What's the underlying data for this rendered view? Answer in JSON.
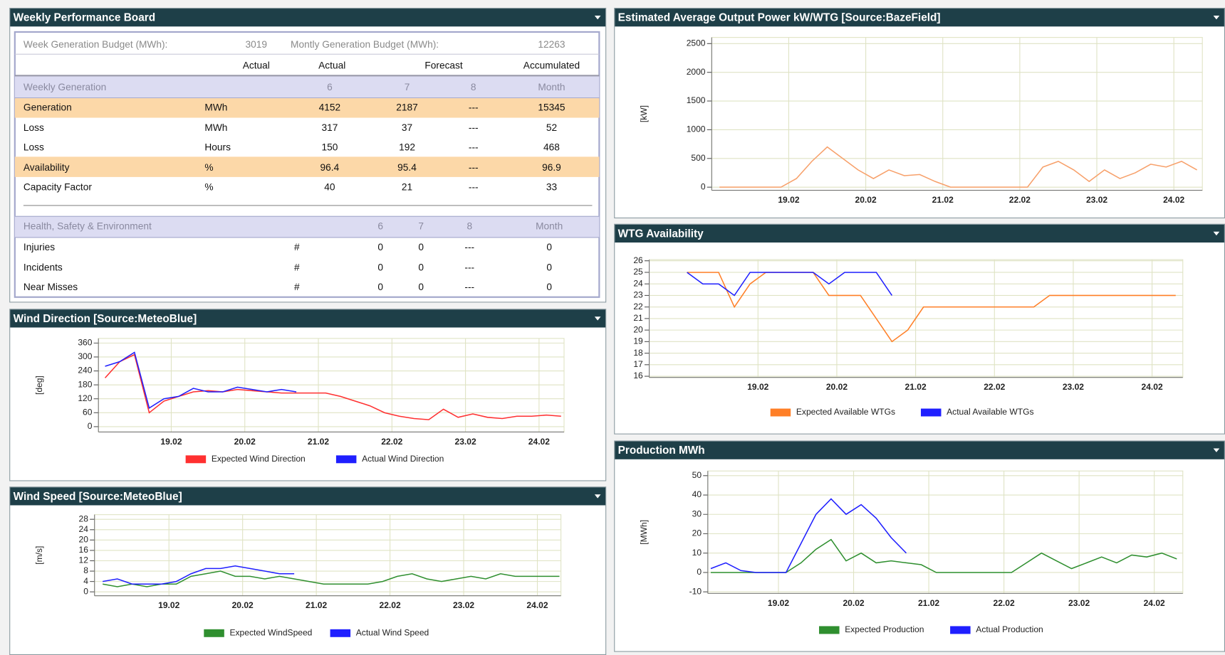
{
  "board": {
    "title": "Weekly Performance Board",
    "budget": {
      "week_label": "Week Generation Budget (MWh):",
      "week_value": 3019,
      "month_label": "Montly Generation Budget (MWh):",
      "month_value": 12263
    },
    "header": [
      "Actual",
      "Actual",
      "Forecast",
      "Accumulated"
    ],
    "generation": {
      "title": "Weekly Generation",
      "columns": [
        "6",
        "7",
        "8",
        "Month"
      ],
      "rows": [
        [
          "Generation",
          "MWh",
          4152,
          2187,
          "---",
          15345
        ],
        [
          "Loss",
          "MWh",
          317,
          37,
          "---",
          52
        ],
        [
          "Loss",
          "Hours",
          150,
          192,
          "---",
          468
        ],
        [
          "Availability",
          "%",
          96.4,
          95.4,
          "---",
          96.9
        ],
        [
          "Capacity Factor",
          "%",
          40,
          21,
          "---",
          33
        ]
      ]
    },
    "hse": {
      "title": "Health, Safety & Environment",
      "columns": [
        "6",
        "7",
        "8",
        "Month"
      ],
      "rows": [
        [
          "Injuries",
          "#",
          0,
          0,
          "---",
          0
        ],
        [
          "Incidents",
          "#",
          0,
          0,
          "---",
          0
        ],
        [
          "Near Misses",
          "#",
          0,
          0,
          "---",
          0
        ]
      ]
    }
  },
  "chart_data": [
    {
      "type": "line",
      "title": "Estimated Average Output Power kW/WTG [Source:BazeField]",
      "ylabel": "[kW]",
      "x": [
        18.1,
        18.3,
        18.5,
        18.7,
        18.9,
        19.1,
        19.3,
        19.5,
        19.7,
        19.9,
        20.1,
        20.3,
        20.5,
        20.7,
        20.9,
        21.1,
        21.3,
        21.5,
        21.7,
        21.9,
        22.1,
        22.3,
        22.5,
        22.7,
        22.9,
        23.1,
        23.3,
        23.5,
        23.7,
        23.9,
        24.1,
        24.3
      ],
      "xlim": [
        18.0,
        24.37
      ],
      "xticks": [
        {
          "value": 19,
          "label": "19.02"
        },
        {
          "value": 20,
          "label": "20.02"
        },
        {
          "value": 21,
          "label": "21.02"
        },
        {
          "value": 22,
          "label": "22.02"
        },
        {
          "value": 23,
          "label": "23.02"
        },
        {
          "value": 24,
          "label": "24.02"
        }
      ],
      "ylim": [
        -54,
        2607
      ],
      "yticks": [
        0,
        500,
        1000,
        1500,
        2000,
        2500
      ],
      "grid": true,
      "series": [
        {
          "color": "#f7a06a",
          "values": [
            0,
            0,
            0,
            0,
            0,
            150,
            450,
            700,
            500,
            300,
            150,
            300,
            200,
            220,
            100,
            0,
            0,
            0,
            0,
            0,
            0,
            350,
            450,
            300,
            100,
            300,
            150,
            250,
            400,
            350,
            450,
            300
          ]
        }
      ]
    },
    {
      "type": "line",
      "title": "WTG Availability",
      "x": [
        18.1,
        18.3,
        18.5,
        18.7,
        18.9,
        19.1,
        19.3,
        19.5,
        19.7,
        19.9,
        20.1,
        20.3,
        20.5,
        20.7,
        20.9,
        21.1,
        21.3,
        21.5,
        21.7,
        21.9,
        22.1,
        22.3,
        22.5,
        22.7,
        22.9,
        23.1,
        23.3,
        23.5,
        23.7,
        23.9,
        24.1,
        24.3
      ],
      "xlim": [
        17.62,
        24.39
      ],
      "xticks": [
        {
          "value": 19,
          "label": "19.02"
        },
        {
          "value": 20,
          "label": "20.02"
        },
        {
          "value": 21,
          "label": "21.02"
        },
        {
          "value": 22,
          "label": "22.02"
        },
        {
          "value": 23,
          "label": "23.02"
        },
        {
          "value": 24,
          "label": "24.02"
        }
      ],
      "ylim": [
        15.9,
        26.1
      ],
      "yticks": [
        16,
        17,
        18,
        19,
        20,
        21,
        22,
        23,
        24,
        25,
        26
      ],
      "grid": true,
      "series": [
        {
          "name": "Expected Available WTGs",
          "color": "#ff7f27",
          "values": [
            25,
            25,
            25,
            22,
            24,
            25,
            25,
            25,
            25,
            23,
            23,
            23,
            21,
            19,
            20,
            22,
            22,
            22,
            22,
            22,
            22,
            22,
            22,
            23,
            23,
            23,
            23,
            23,
            23,
            23,
            23,
            23
          ]
        },
        {
          "name": "Actual Available WTGs",
          "color": "#1f1fff",
          "values": [
            25,
            24,
            24,
            23,
            25,
            25,
            25,
            25,
            25,
            24,
            25,
            25,
            25,
            23,
            null,
            null,
            null,
            null,
            null,
            null,
            null,
            null,
            null,
            null,
            null,
            null,
            null,
            null,
            null,
            null,
            null,
            null
          ]
        }
      ]
    },
    {
      "type": "line",
      "title": "Production MWh",
      "ylabel": "[MWh]",
      "x": [
        18.1,
        18.3,
        18.5,
        18.7,
        18.9,
        19.1,
        19.3,
        19.5,
        19.7,
        19.9,
        20.1,
        20.3,
        20.5,
        20.7,
        20.9,
        21.1,
        21.3,
        21.5,
        21.7,
        21.9,
        22.1,
        22.3,
        22.5,
        22.7,
        22.9,
        23.1,
        23.3,
        23.5,
        23.7,
        23.9,
        24.1,
        24.3
      ],
      "xlim": [
        18.06,
        24.38
      ],
      "xticks": [
        {
          "value": 19,
          "label": "19.02"
        },
        {
          "value": 20,
          "label": "20.02"
        },
        {
          "value": 21,
          "label": "21.02"
        },
        {
          "value": 22,
          "label": "22.02"
        },
        {
          "value": 23,
          "label": "23.02"
        },
        {
          "value": 24,
          "label": "24.02"
        }
      ],
      "ylim": [
        -10.8,
        52.4
      ],
      "yticks": [
        -10,
        0,
        10,
        20,
        30,
        40,
        50
      ],
      "grid": true,
      "series": [
        {
          "name": "Expected Production",
          "color": "#2f8f2f",
          "values": [
            0,
            0,
            0,
            0,
            0,
            0,
            5,
            12,
            17,
            6,
            10,
            5,
            6,
            5,
            4,
            0,
            0,
            0,
            0,
            0,
            0,
            5,
            10,
            6,
            2,
            5,
            8,
            5,
            9,
            8,
            10,
            7
          ]
        },
        {
          "name": "Actual Production",
          "color": "#1f1fff",
          "values": [
            2,
            5,
            1,
            0,
            0,
            0,
            15,
            30,
            38,
            30,
            35,
            28,
            18,
            10,
            null,
            null,
            null,
            null,
            null,
            null,
            null,
            null,
            null,
            null,
            null,
            null,
            null,
            null,
            null,
            null,
            null,
            null
          ]
        }
      ]
    },
    {
      "type": "line",
      "title": "Wind Direction [Source:MeteoBlue]",
      "ylabel": "[deg]",
      "x": [
        18.1,
        18.3,
        18.5,
        18.7,
        18.9,
        19.1,
        19.3,
        19.5,
        19.7,
        19.9,
        20.1,
        20.3,
        20.5,
        20.7,
        20.9,
        21.1,
        21.3,
        21.5,
        21.7,
        21.9,
        22.1,
        22.3,
        22.5,
        22.7,
        22.9,
        23.1,
        23.3,
        23.5,
        23.7,
        23.9,
        24.1,
        24.3
      ],
      "xlim": [
        18.01,
        24.34
      ],
      "xticks": [
        {
          "value": 19,
          "label": "19.02"
        },
        {
          "value": 20,
          "label": "20.02"
        },
        {
          "value": 21,
          "label": "21.02"
        },
        {
          "value": 22,
          "label": "22.02"
        },
        {
          "value": 23,
          "label": "23.02"
        },
        {
          "value": 24,
          "label": "24.02"
        }
      ],
      "ylim": [
        -23,
        380
      ],
      "yticks": [
        0,
        60,
        120,
        180,
        240,
        300,
        360
      ],
      "grid": true,
      "series": [
        {
          "name": "Expected Wind Direction",
          "color": "#ff3030",
          "values": [
            210,
            280,
            310,
            60,
            110,
            130,
            150,
            155,
            150,
            160,
            155,
            150,
            145,
            145,
            145,
            145,
            130,
            110,
            90,
            60,
            45,
            35,
            30,
            75,
            40,
            55,
            40,
            35,
            45,
            45,
            50,
            45
          ]
        },
        {
          "name": "Actual Wind Direction",
          "color": "#1f1fff",
          "values": [
            260,
            280,
            320,
            80,
            120,
            130,
            165,
            150,
            150,
            170,
            160,
            150,
            160,
            150,
            null,
            null,
            null,
            null,
            null,
            null,
            null,
            null,
            null,
            null,
            null,
            null,
            null,
            null,
            null,
            null,
            null,
            null
          ]
        }
      ]
    },
    {
      "type": "line",
      "title": "Wind Speed [Source:MeteoBlue]",
      "ylabel": "[m/s]",
      "x": [
        18.1,
        18.3,
        18.5,
        18.7,
        18.9,
        19.1,
        19.3,
        19.5,
        19.7,
        19.9,
        20.1,
        20.3,
        20.5,
        20.7,
        20.9,
        21.1,
        21.3,
        21.5,
        21.7,
        21.9,
        22.1,
        22.3,
        22.5,
        22.7,
        22.9,
        23.1,
        23.3,
        23.5,
        23.7,
        23.9,
        24.1,
        24.3
      ],
      "xlim": [
        17.99,
        24.32
      ],
      "xticks": [
        {
          "value": 19,
          "label": "19.02"
        },
        {
          "value": 20,
          "label": "20.02"
        },
        {
          "value": 21,
          "label": "21.02"
        },
        {
          "value": 22,
          "label": "22.02"
        },
        {
          "value": 23,
          "label": "23.02"
        },
        {
          "value": 24,
          "label": "24.02"
        }
      ],
      "ylim": [
        -1.5,
        29.8
      ],
      "yticks": [
        0,
        4,
        8,
        12,
        16,
        20,
        24,
        28
      ],
      "grid": true,
      "series": [
        {
          "name": "Expected WindSpeed",
          "color": "#2f8f2f",
          "values": [
            3,
            2,
            3,
            2,
            3,
            3,
            6,
            7,
            8,
            6,
            6,
            5,
            6,
            5,
            4,
            3,
            3,
            3,
            3,
            4,
            6,
            7,
            5,
            4,
            5,
            6,
            5,
            7,
            6,
            6,
            6,
            6
          ]
        },
        {
          "name": "Actual Wind Speed",
          "color": "#1f1fff",
          "values": [
            4,
            5,
            3,
            3,
            3,
            4,
            7,
            9,
            9,
            10,
            9,
            8,
            7,
            7,
            null,
            null,
            null,
            null,
            null,
            null,
            null,
            null,
            null,
            null,
            null,
            null,
            null,
            null,
            null,
            null,
            null,
            null
          ]
        }
      ]
    }
  ]
}
